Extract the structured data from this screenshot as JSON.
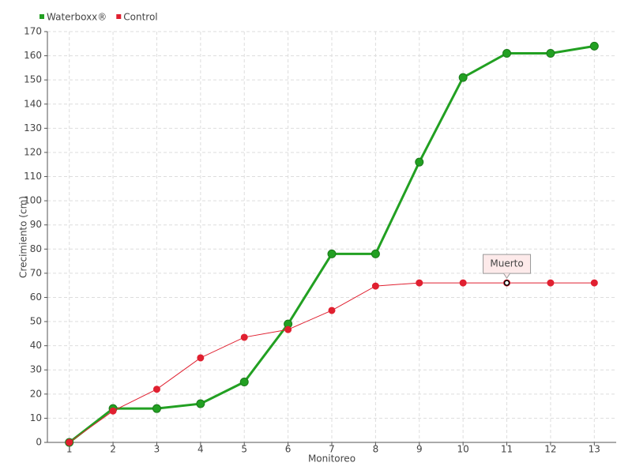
{
  "chart_data": {
    "type": "line",
    "x_label": "Monitoreo",
    "y_label": "Crecimiento (cm)",
    "categories": [
      1,
      2,
      3,
      4,
      5,
      6,
      7,
      8,
      9,
      10,
      11,
      12,
      13
    ],
    "series": [
      {
        "name": "Waterboxx®",
        "color": "#22a022",
        "values": [
          0,
          14,
          14,
          16,
          25,
          49,
          78,
          78,
          116,
          151,
          161,
          161,
          164
        ]
      },
      {
        "name": "Control",
        "color": "#e02030",
        "values": [
          0,
          13,
          22,
          35,
          43.5,
          46.7,
          54.6,
          64.7,
          66,
          66,
          66,
          66,
          66
        ]
      }
    ],
    "ylim": [
      0,
      170
    ],
    "yticks": [
      0,
      10,
      20,
      30,
      40,
      50,
      60,
      70,
      80,
      90,
      100,
      110,
      120,
      130,
      140,
      150,
      160,
      170
    ],
    "grid": true,
    "legend": "top-left",
    "annotations": [
      {
        "text": "Muerto",
        "x": 11
      }
    ]
  }
}
